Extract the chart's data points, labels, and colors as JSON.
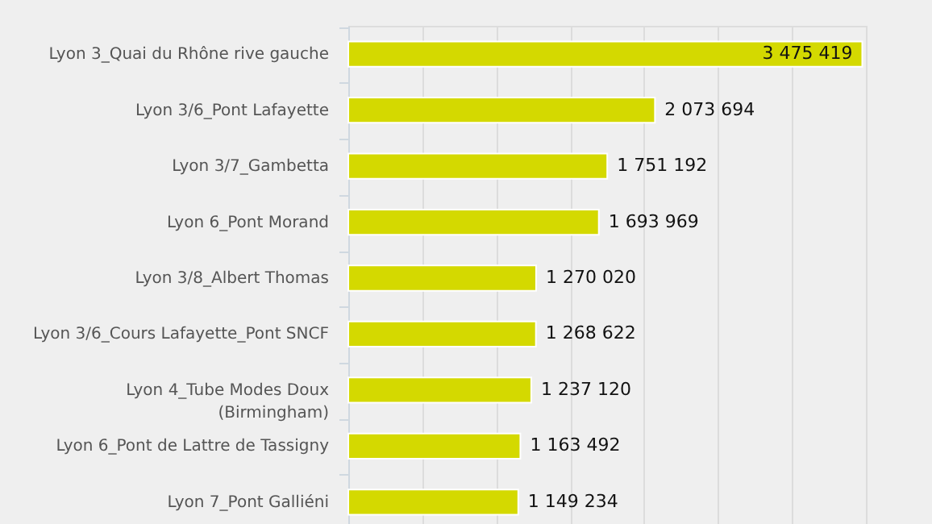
{
  "chart_data": {
    "type": "bar",
    "orientation": "horizontal",
    "categories": [
      "Lyon 3_Quai du Rhône rive gauche",
      "Lyon 3/6_Pont Lafayette",
      "Lyon 3/7_Gambetta",
      "Lyon 6_Pont Morand",
      "Lyon 3/8_Albert Thomas",
      "Lyon 3/6_Cours Lafayette_Pont SNCF",
      "Lyon 4_Tube Modes Doux (Birmingham)",
      "Lyon 6_Pont de Lattre de Tassigny",
      "Lyon 7_Pont Galliéni"
    ],
    "values": [
      3475419,
      2073694,
      1751192,
      1693969,
      1270020,
      1268622,
      1237120,
      1163492,
      1149234
    ],
    "value_labels": [
      "3 475 419",
      "2 073 694",
      "1 751 192",
      "1 693 969",
      "1 270 020",
      "1 268 622",
      "1 237 120",
      "1 163 492",
      "1 149 234"
    ],
    "color": "#d4d900",
    "xlim": [
      0,
      3500000
    ],
    "xticks": [
      {
        "value": 0,
        "label": null
      },
      {
        "value": 500000,
        "label": null
      },
      {
        "value": 1000000,
        "label": null
      },
      {
        "value": 1500000,
        "label": null
      },
      {
        "value": 2000000,
        "label": null
      },
      {
        "value": 2500000,
        "label": null
      },
      {
        "value": 3000000,
        "label": null
      },
      {
        "value": 3500000,
        "label": null
      }
    ],
    "grid": "x",
    "tick_labels": "y"
  }
}
